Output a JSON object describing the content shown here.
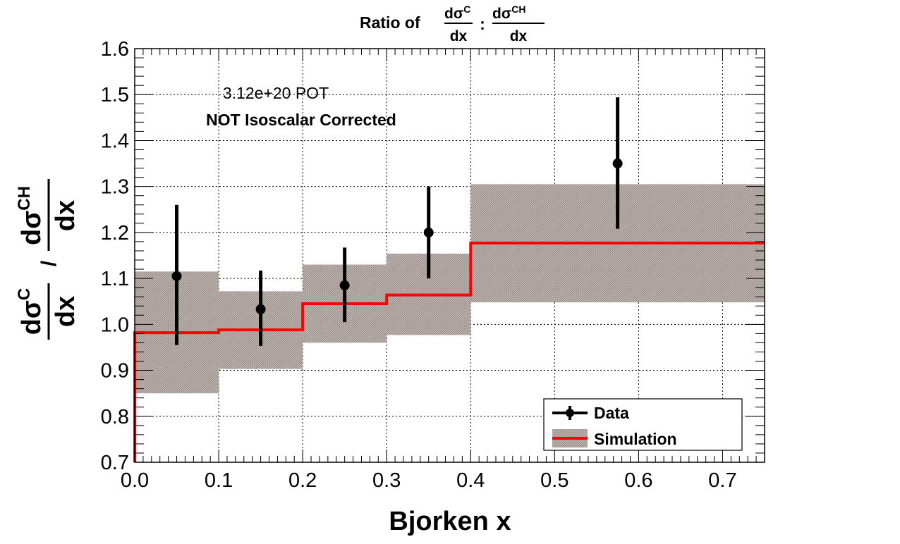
{
  "chart_data": {
    "type": "step-with-points",
    "title": {
      "prefix": "Ratio of",
      "frac1": {
        "num_base": "dσ",
        "num_sup": "C",
        "den": "dx"
      },
      "separator": ":",
      "frac2": {
        "num_base": "dσ",
        "num_sup": "CH",
        "den": "dx"
      }
    },
    "xlabel": "Bjorken x",
    "ylabel": {
      "frac1": {
        "num_base": "dσ",
        "num_sup": "C",
        "den": "dx"
      },
      "separator": "/",
      "frac2": {
        "num_base": "dσ",
        "num_sup": "CH",
        "den": "dx"
      }
    },
    "xlim": [
      0.0,
      0.75
    ],
    "ylim": [
      0.7,
      1.6
    ],
    "xticks": [
      0.0,
      0.1,
      0.2,
      0.3,
      0.4,
      0.5,
      0.6,
      0.7
    ],
    "xtick_labels": [
      "0.0",
      "0.1",
      "0.2",
      "0.3",
      "0.4",
      "0.5",
      "0.6",
      "0.7"
    ],
    "yticks": [
      0.7,
      0.8,
      0.9,
      1.0,
      1.1,
      1.2,
      1.3,
      1.4,
      1.5,
      1.6
    ],
    "ytick_labels": [
      "0.7",
      "0.8",
      "0.9",
      "1.0",
      "1.1",
      "1.2",
      "1.3",
      "1.4",
      "1.5",
      "1.6"
    ],
    "grid": true,
    "annotations": [
      "3.12e+20 POT",
      "NOT Isoscalar Corrected"
    ],
    "series": [
      {
        "name": "Data",
        "kind": "points",
        "color": "#000000",
        "points": [
          {
            "x": 0.05,
            "y": 1.105,
            "ylo": 0.955,
            "yhi": 1.26
          },
          {
            "x": 0.15,
            "y": 1.033,
            "ylo": 0.953,
            "yhi": 1.117
          },
          {
            "x": 0.25,
            "y": 1.085,
            "ylo": 1.005,
            "yhi": 1.167
          },
          {
            "x": 0.35,
            "y": 1.2,
            "ylo": 1.1,
            "yhi": 1.3
          },
          {
            "x": 0.575,
            "y": 1.35,
            "ylo": 1.208,
            "yhi": 1.494
          }
        ]
      },
      {
        "name": "Simulation",
        "kind": "step",
        "color": "#ff0000",
        "band_color": "#b7aca8",
        "bins": [
          {
            "lo": 0.0,
            "hi": 0.1,
            "value": 0.982,
            "band_lo": 0.85,
            "band_hi": 1.115
          },
          {
            "lo": 0.1,
            "hi": 0.2,
            "value": 0.988,
            "band_lo": 0.903,
            "band_hi": 1.072
          },
          {
            "lo": 0.2,
            "hi": 0.3,
            "value": 1.045,
            "band_lo": 0.96,
            "band_hi": 1.13
          },
          {
            "lo": 0.3,
            "hi": 0.4,
            "value": 1.064,
            "band_lo": 0.977,
            "band_hi": 1.154
          },
          {
            "lo": 0.4,
            "hi": 0.75,
            "value": 1.177,
            "band_lo": 1.048,
            "band_hi": 1.305
          }
        ]
      }
    ],
    "legend": {
      "position": "bottom-right",
      "entries": [
        "Data",
        "Simulation"
      ]
    }
  }
}
